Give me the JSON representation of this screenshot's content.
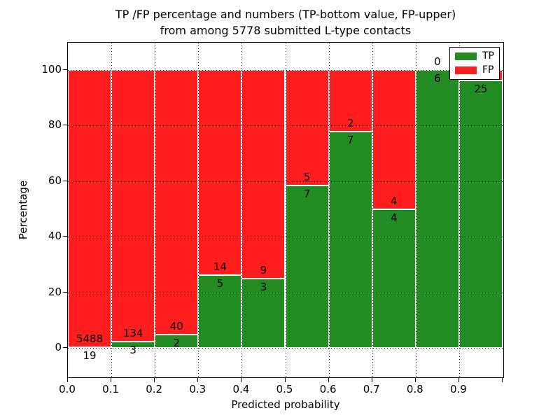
{
  "title": {
    "line1": "TP /FP percentage and numbers (TP-bottom value, FP-upper)",
    "line2": "from among 5778 submitted L-type contacts"
  },
  "axes": {
    "xlabel": "Predicted probability",
    "ylabel": "Percentage",
    "xtick_labels": [
      "0.0",
      "0.1",
      "0.2",
      "0.3",
      "0.4",
      "0.5",
      "0.6",
      "0.7",
      "0.8",
      "0.9"
    ],
    "ytick_values": [
      0,
      20,
      40,
      60,
      80,
      100
    ]
  },
  "legend": {
    "items": [
      {
        "label": "TP",
        "color": "#228b22"
      },
      {
        "label": "FP",
        "color": "#ff1d1d"
      }
    ]
  },
  "colors": {
    "tp": "#228b22",
    "fp": "#ff1d1d",
    "grid": "#000000",
    "background": "#ffffff"
  },
  "chart_data": {
    "type": "bar",
    "stacked": true,
    "normalized": "each bar scaled to 100%",
    "title": "TP /FP percentage and numbers (TP-bottom value, FP-upper) from among 5778 submitted L-type contacts",
    "xlabel": "Predicted probability",
    "ylabel": "Percentage",
    "total_submitted": 5778,
    "bins": [
      "0.0-0.1",
      "0.1-0.2",
      "0.2-0.3",
      "0.3-0.4",
      "0.4-0.5",
      "0.5-0.6",
      "0.6-0.7",
      "0.7-0.8",
      "0.8-0.9",
      "0.9-1.0"
    ],
    "series": [
      {
        "name": "TP",
        "counts": [
          19,
          3,
          2,
          5,
          3,
          7,
          7,
          4,
          6,
          25
        ]
      },
      {
        "name": "FP",
        "counts": [
          5488,
          134,
          40,
          14,
          9,
          5,
          2,
          4,
          0,
          1
        ]
      }
    ],
    "tp_percent": [
      0.34,
      2.19,
      4.76,
      26.32,
      25.0,
      58.33,
      77.78,
      50.0,
      100.0,
      96.15
    ],
    "annotation_labels_tp": [
      "19",
      "3",
      "2",
      "5",
      "3",
      "7",
      "7",
      "4",
      "6",
      "25"
    ],
    "annotation_labels_fp": [
      "5488",
      "134",
      "40",
      "14",
      "9",
      "5",
      "2",
      "4",
      "0",
      ""
    ],
    "xlim": [
      0.0,
      1.0
    ],
    "ylim": [
      -10.8,
      110.1
    ],
    "grid": "dotted, x every 0.1, y every 20",
    "legend_position": "upper right"
  }
}
